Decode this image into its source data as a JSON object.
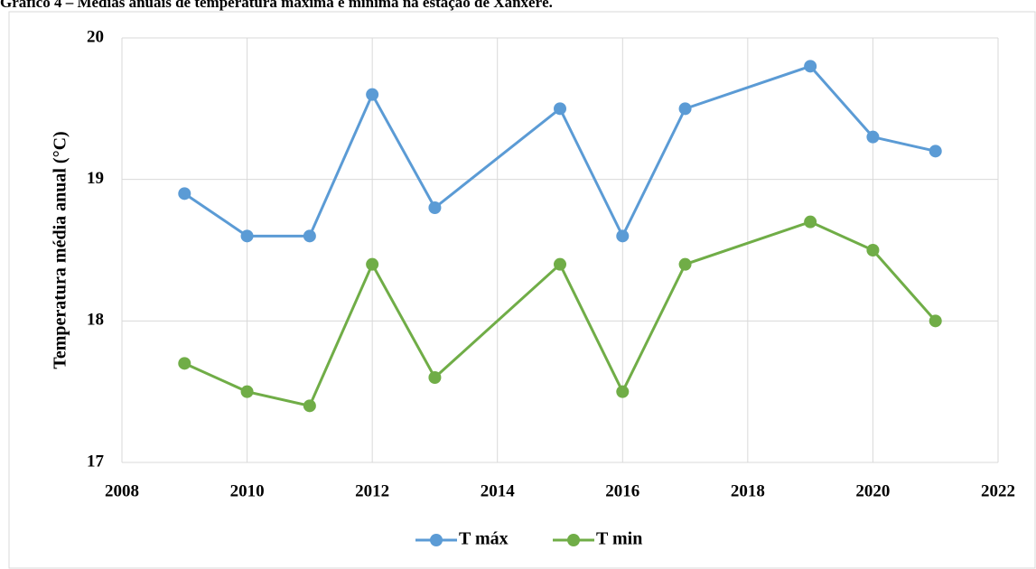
{
  "chart_data": {
    "type": "line",
    "title": "Gráfico 4 – Médias anuais de temperatura máxima e mínima na estação de Xanxerê.",
    "y_label": "Temperatura média anual (°C)",
    "x": [
      2009,
      2010,
      2011,
      2012,
      2013,
      2015,
      2016,
      2017,
      2019,
      2020,
      2021
    ],
    "series": [
      {
        "name": "T máx",
        "color": "#5b9bd5",
        "values": [
          18.9,
          18.6,
          18.6,
          19.6,
          18.8,
          19.5,
          18.6,
          19.5,
          19.8,
          19.3,
          19.2
        ]
      },
      {
        "name": "T min",
        "color": "#70ad47",
        "values": [
          17.7,
          17.5,
          17.4,
          18.4,
          17.6,
          18.4,
          17.5,
          18.4,
          18.7,
          18.5,
          18.0
        ]
      }
    ],
    "xlim": [
      2008,
      2022
    ],
    "xticks": [
      2008,
      2010,
      2012,
      2014,
      2016,
      2018,
      2020,
      2022
    ],
    "ylim": [
      17,
      20
    ],
    "yticks": [
      17,
      18,
      19,
      20
    ],
    "grid": true,
    "legend": "bottom"
  }
}
